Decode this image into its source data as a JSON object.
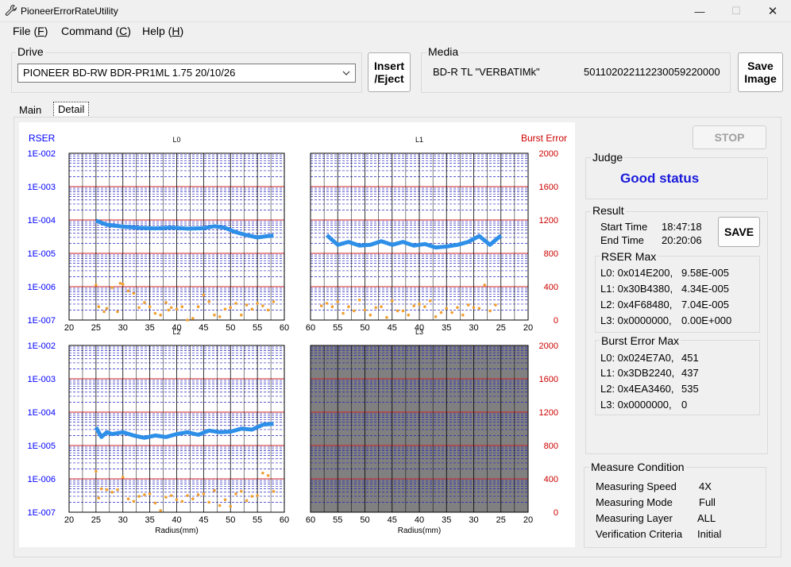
{
  "window": {
    "title": "PioneerErrorRateUtility",
    "minimize_glyph": "—",
    "maximize_glyph": "☐",
    "close_glyph": "✕"
  },
  "menu": [
    {
      "label": "File (F)",
      "letter": "F",
      "text": "File (",
      "end": ")"
    },
    {
      "label": "Command (C)",
      "letter": "C",
      "text": "Command (",
      "end": ")"
    },
    {
      "label": "Help (H)",
      "letter": "H",
      "text": "Help (",
      "end": ")"
    }
  ],
  "drive": {
    "group_label": "Drive",
    "selected": "PIONEER BD-RW BDR-PR1ML 1.75 20/10/26"
  },
  "insert_eject_label_1": "Insert",
  "insert_eject_label_2": "/Eject",
  "media": {
    "group_label": "Media",
    "type": "BD-R TL \"VERBATIMk\"",
    "id": "50110202211223005922000​0"
  },
  "save_image_label_1": "Save",
  "save_image_label_2": "Image",
  "tabs": [
    {
      "label": "Main"
    },
    {
      "label": "Detail",
      "active": true
    }
  ],
  "stop_label": "STOP",
  "judge": {
    "group_label": "Judge",
    "status": "Good status",
    "status_color": "#1a1adc"
  },
  "result": {
    "group_label": "Result",
    "start_label": "Start Time",
    "start_value": "18:47:18",
    "end_label": "End Time",
    "end_value": "20:20:06",
    "save_label": "SAVE",
    "rser_max_label": "RSER Max",
    "rser_max": [
      {
        "addr": "L0: 0x014E200,",
        "value": "9.58E-005"
      },
      {
        "addr": "L1: 0x30B4380,",
        "value": "4.34E-005"
      },
      {
        "addr": "L2: 0x4F68480,",
        "value": "7.04E-005"
      },
      {
        "addr": "L3: 0x0000000,",
        "value": "0.00E+000"
      }
    ],
    "burst_max_label": "Burst Error Max",
    "burst_max": [
      {
        "addr": "L0: 0x024E7A0,",
        "value": "451"
      },
      {
        "addr": "L1: 0x3DB2240,",
        "value": "437"
      },
      {
        "addr": "L2: 0x4EA3460,",
        "value": "535"
      },
      {
        "addr": "L3: 0x0000000,",
        "value": "0"
      }
    ]
  },
  "measure": {
    "group_label": "Measure Condition",
    "rows": [
      {
        "label": "Measuring Speed",
        "value": "4X"
      },
      {
        "label": "Measuring Mode",
        "value": "Full"
      },
      {
        "label": "Measuring Layer",
        "value": "ALL"
      },
      {
        "label": "Verification Criteria",
        "value": "Initial"
      }
    ]
  },
  "chart_data": {
    "type": "line",
    "left_axis_label": "RSER",
    "right_axis_label": "Burst Error",
    "left_color": "#0000ff",
    "right_color": "#cc0000",
    "rser_ticks": [
      "1E-002",
      "1E-003",
      "1E-004",
      "1E-005",
      "1E-006",
      "1E-007"
    ],
    "burst_ticks": [
      "2000",
      "1600",
      "1200",
      "800",
      "400",
      "0"
    ],
    "xlabel": "Radius(mm)",
    "rser_color": "#2e8fe8",
    "burst_color": "#f0a030",
    "panels": [
      {
        "title": "L0",
        "x_ticks": [
          "20",
          "25",
          "30",
          "35",
          "40",
          "45",
          "50",
          "55",
          "60"
        ],
        "xlim": [
          20,
          60
        ],
        "rser": {
          "x": [
            25,
            27,
            30,
            33,
            36,
            39,
            42,
            45,
            47,
            49,
            51,
            53,
            55,
            57,
            58
          ],
          "y": [
            9.5e-05,
            7.2e-05,
            6.3e-05,
            5.8e-05,
            5.6e-05,
            5.9e-05,
            5.5e-05,
            5.7e-05,
            6.5e-05,
            5.8e-05,
            4.3e-05,
            3.5e-05,
            3e-05,
            3.3e-05,
            3.4e-05
          ]
        },
        "burst": {
          "x": [
            25,
            25.5,
            26.5,
            27,
            28,
            29,
            29.5,
            30,
            31,
            32,
            33,
            34,
            35,
            36,
            37,
            38,
            38.5,
            39,
            40,
            41,
            42,
            43,
            44,
            45,
            46,
            47,
            48,
            49,
            50,
            51,
            52,
            53,
            54,
            55,
            56,
            57,
            58
          ],
          "y": [
            420,
            160,
            100,
            140,
            390,
            100,
            440,
            430,
            350,
            320,
            150,
            210,
            160,
            80,
            60,
            210,
            120,
            150,
            130,
            160,
            0,
            20,
            160,
            300,
            220,
            60,
            40,
            130,
            150,
            200,
            60,
            180,
            130,
            200,
            170,
            120,
            220
          ]
        }
      },
      {
        "title": "L1",
        "x_ticks": [
          "60",
          "55",
          "50",
          "45",
          "40",
          "35",
          "30",
          "25",
          "20"
        ],
        "xlim": [
          60,
          20
        ],
        "rser": {
          "x": [
            57,
            56,
            55,
            53,
            51,
            49,
            47,
            45,
            43,
            41,
            39,
            37,
            35,
            33,
            31,
            29,
            27,
            26,
            25
          ],
          "y": [
            3.5e-05,
            2.5e-05,
            1.8e-05,
            2.2e-05,
            1.7e-05,
            1.8e-05,
            2.3e-05,
            1.8e-05,
            2.2e-05,
            1.7e-05,
            1.9e-05,
            1.5e-05,
            1.6e-05,
            1.8e-05,
            2.2e-05,
            3.3e-05,
            1.8e-05,
            2.5e-05,
            3.4e-05
          ]
        },
        "burst": {
          "x": [
            58,
            57,
            56,
            55,
            54,
            53,
            52,
            51,
            50,
            49,
            48,
            47,
            46,
            45,
            44,
            43,
            42,
            41,
            40,
            39,
            38,
            37,
            36,
            35,
            34,
            33,
            32,
            31,
            30,
            29,
            28,
            27,
            26
          ],
          "y": [
            170,
            200,
            160,
            220,
            80,
            160,
            110,
            240,
            120,
            60,
            150,
            160,
            30,
            230,
            110,
            110,
            60,
            170,
            190,
            160,
            230,
            40,
            90,
            140,
            90,
            150,
            60,
            180,
            150,
            140,
            420,
            110,
            180
          ]
        }
      },
      {
        "title": "L2",
        "x_ticks": [
          "20",
          "25",
          "30",
          "35",
          "40",
          "45",
          "50",
          "55",
          "60"
        ],
        "xlim": [
          20,
          60
        ],
        "rser": {
          "x": [
            25,
            26,
            27,
            28,
            30,
            32,
            34,
            36,
            38,
            40,
            42,
            44,
            46,
            48,
            50,
            52,
            54,
            56,
            58
          ],
          "y": [
            3.5e-05,
            1.8e-05,
            2.5e-05,
            2.2e-05,
            2.5e-05,
            2e-05,
            1.7e-05,
            2e-05,
            1.8e-05,
            2.2e-05,
            2.5e-05,
            2.1e-05,
            2.8e-05,
            2.5e-05,
            2.6e-05,
            3.2e-05,
            3e-05,
            4.2e-05,
            4.5e-05
          ]
        },
        "burst": {
          "x": [
            25,
            25.5,
            26,
            27,
            28,
            29,
            30,
            31,
            32,
            33,
            34,
            35,
            36,
            37,
            38,
            39,
            40,
            41,
            42,
            43,
            44,
            45,
            46,
            47,
            48,
            49,
            50,
            51,
            52,
            53,
            54,
            55,
            56,
            57,
            58
          ],
          "y": [
            490,
            170,
            280,
            270,
            240,
            270,
            420,
            160,
            130,
            190,
            210,
            220,
            110,
            20,
            180,
            200,
            150,
            130,
            200,
            160,
            210,
            220,
            120,
            260,
            80,
            150,
            70,
            220,
            250,
            140,
            190,
            200,
            470,
            440,
            250
          ]
        }
      },
      {
        "title": "L3",
        "x_ticks": [
          "60",
          "55",
          "50",
          "45",
          "40",
          "35",
          "30",
          "25",
          "20"
        ],
        "xlim": [
          60,
          20
        ],
        "empty": true,
        "rser": {
          "x": [],
          "y": []
        },
        "burst": {
          "x": [],
          "y": []
        }
      }
    ]
  }
}
